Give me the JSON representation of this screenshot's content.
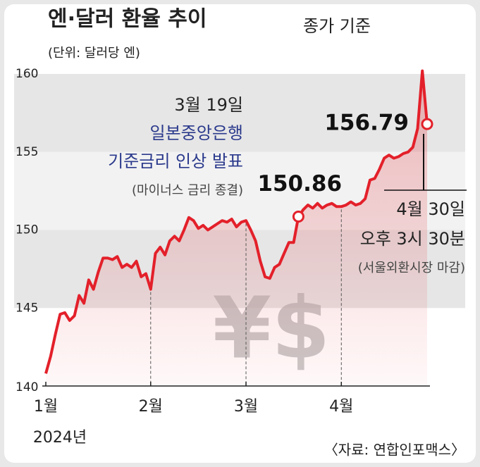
{
  "chart_data": {
    "type": "line",
    "title": "엔·달러 환율 추이",
    "subtitle": "종가 기준",
    "unit_label": "(단위: 달러당 엔)",
    "categories": [
      "1월",
      null,
      null,
      null,
      null,
      null,
      null,
      null,
      null,
      null,
      null,
      null,
      null,
      null,
      null,
      null,
      null,
      null,
      null,
      null,
      null,
      null,
      "2월",
      null,
      null,
      null,
      null,
      null,
      null,
      null,
      null,
      null,
      null,
      null,
      null,
      null,
      null,
      null,
      null,
      null,
      null,
      null,
      "3월",
      null,
      null,
      null,
      null,
      null,
      null,
      null,
      null,
      null,
      null,
      null,
      null,
      null,
      null,
      null,
      null,
      null,
      null,
      null,
      "4월",
      null,
      null,
      null,
      null,
      null,
      null,
      null,
      null,
      null,
      null,
      null,
      null,
      null,
      null,
      null,
      null,
      null,
      null
    ],
    "series": [
      {
        "name": "엔·달러 환율",
        "color": "#e3202a",
        "values": [
          140.8,
          141.9,
          143.3,
          144.6,
          144.7,
          144.2,
          144.5,
          145.8,
          145.3,
          146.8,
          146.2,
          147.3,
          148.2,
          148.2,
          148.1,
          148.3,
          147.6,
          147.8,
          147.6,
          148.0,
          147.0,
          147.2,
          146.2,
          148.5,
          148.9,
          148.4,
          149.3,
          149.6,
          149.3,
          150.0,
          150.8,
          150.6,
          150.1,
          150.3,
          150.0,
          150.2,
          150.4,
          150.6,
          150.5,
          150.7,
          150.2,
          150.5,
          150.6,
          150.0,
          149.3,
          148.0,
          147.0,
          146.9,
          147.6,
          147.8,
          148.5,
          149.2,
          149.2,
          150.86,
          151.3,
          151.6,
          151.4,
          151.7,
          151.4,
          151.6,
          151.7,
          151.5,
          151.5,
          151.6,
          151.8,
          151.6,
          151.7,
          152.0,
          153.2,
          153.3,
          153.9,
          154.6,
          154.8,
          154.6,
          154.7,
          154.9,
          155.0,
          155.3,
          156.5,
          160.2,
          156.79
        ]
      }
    ],
    "ylim": [
      140,
      160
    ],
    "yticks": [
      140,
      145,
      150,
      155,
      160
    ],
    "bands": true,
    "band_colors": [
      "#e6e6e6",
      "#f2f2f2"
    ],
    "year_label": "2024년",
    "watermark": "¥$",
    "annotations": {
      "boj": [
        "3월 19일",
        "일본중앙은행",
        "기준금리 인상 발표",
        "(마이너스 금리 종결)"
      ],
      "close": [
        "4월 30일",
        "오후 3시 30분",
        "(서울외환시장 마감)"
      ]
    },
    "highlight_points": [
      53,
      80
    ],
    "source": "〈자료: 연합인포맥스〉"
  }
}
